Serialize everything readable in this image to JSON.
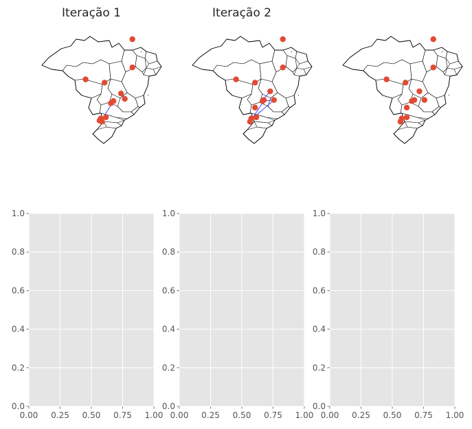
{
  "chart_data": [
    {
      "type": "scatter",
      "title": "Iteração 1",
      "axis": "off",
      "background": "map-of-brazil-states",
      "point_color": "#e24a33",
      "arrow_color": "#3333ff",
      "points": [
        [
          0.77,
          0.14
        ],
        [
          0.77,
          0.4
        ],
        [
          0.4,
          0.51
        ],
        [
          0.55,
          0.54
        ],
        [
          0.68,
          0.64
        ],
        [
          0.71,
          0.69
        ],
        [
          0.62,
          0.71
        ],
        [
          0.6,
          0.73
        ],
        [
          0.52,
          0.87
        ],
        [
          0.56,
          0.86
        ],
        [
          0.51,
          0.89
        ],
        [
          0.53,
          0.9
        ]
      ],
      "arrows": [
        [
          0.68,
          0.64,
          0.71,
          0.69
        ],
        [
          0.62,
          0.71,
          0.53,
          0.88
        ]
      ]
    },
    {
      "type": "scatter",
      "title": "Iteração 2",
      "axis": "off",
      "background": "map-of-brazil-states",
      "point_color": "#e24a33",
      "arrow_color": "#3333ff",
      "points": [
        [
          0.77,
          0.14
        ],
        [
          0.77,
          0.4
        ],
        [
          0.4,
          0.51
        ],
        [
          0.55,
          0.54
        ],
        [
          0.67,
          0.62
        ],
        [
          0.62,
          0.7
        ],
        [
          0.7,
          0.7
        ],
        [
          0.61,
          0.71
        ],
        [
          0.55,
          0.77
        ],
        [
          0.56,
          0.86
        ],
        [
          0.52,
          0.87
        ],
        [
          0.51,
          0.9
        ]
      ],
      "arrows": [
        [
          0.67,
          0.62,
          0.61,
          0.7
        ],
        [
          0.7,
          0.7,
          0.62,
          0.71
        ],
        [
          0.7,
          0.7,
          0.52,
          0.88
        ],
        [
          0.62,
          0.71,
          0.51,
          0.9
        ]
      ]
    },
    {
      "type": "scatter",
      "title": "",
      "axis": "off",
      "background": "map-of-brazil-states",
      "point_color": "#e24a33",
      "points": [
        [
          0.77,
          0.14
        ],
        [
          0.77,
          0.4
        ],
        [
          0.4,
          0.51
        ],
        [
          0.55,
          0.54
        ],
        [
          0.66,
          0.62
        ],
        [
          0.62,
          0.7
        ],
        [
          0.7,
          0.7
        ],
        [
          0.6,
          0.71
        ],
        [
          0.56,
          0.77
        ],
        [
          0.56,
          0.86
        ],
        [
          0.52,
          0.87
        ],
        [
          0.51,
          0.9
        ]
      ]
    },
    {
      "type": "scatter",
      "title": "",
      "xlim": [
        0,
        1
      ],
      "ylim": [
        0,
        1
      ],
      "grid": true,
      "series": [],
      "x_ticks": [
        "0.00",
        "0.25",
        "0.50",
        "0.75",
        "1.00"
      ],
      "y_ticks": [
        "0.0",
        "0.2",
        "0.4",
        "0.6",
        "0.8",
        "1.0"
      ]
    },
    {
      "type": "scatter",
      "title": "",
      "xlim": [
        0,
        1
      ],
      "ylim": [
        0,
        1
      ],
      "grid": true,
      "series": [],
      "x_ticks": [
        "0.00",
        "0.25",
        "0.50",
        "0.75",
        "1.00"
      ],
      "y_ticks": [
        "0.0",
        "0.2",
        "0.4",
        "0.6",
        "0.8",
        "1.0"
      ]
    },
    {
      "type": "scatter",
      "title": "",
      "xlim": [
        0,
        1
      ],
      "ylim": [
        0,
        1
      ],
      "grid": true,
      "series": [],
      "x_ticks": [
        "0.00",
        "0.25",
        "0.50",
        "0.75",
        "1.00"
      ],
      "y_ticks": [
        "0.0",
        "0.2",
        "0.4",
        "0.6",
        "0.8",
        "1.0"
      ]
    }
  ]
}
